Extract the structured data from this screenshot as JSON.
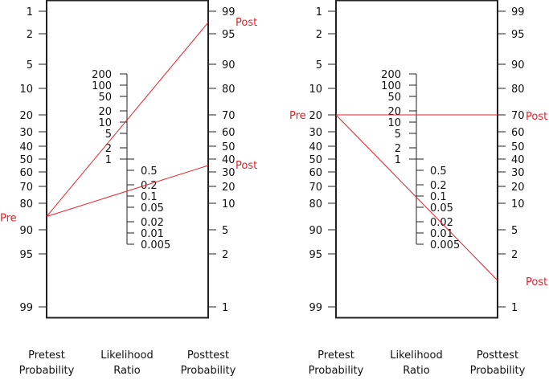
{
  "pretest_ticks": [
    "1",
    "2",
    "5",
    "10",
    "20",
    "30",
    "40",
    "50",
    "60",
    "70",
    "80",
    "90",
    "95",
    "99"
  ],
  "posttest_ticks": [
    "99",
    "95",
    "90",
    "80",
    "70",
    "60",
    "50",
    "40",
    "30",
    "20",
    "10",
    "5",
    "2",
    "1"
  ],
  "lr_ticks_upper": [
    "200",
    "100",
    "50",
    "20",
    "10",
    "5",
    "2",
    "1"
  ],
  "lr_ticks_lower": [
    "0.5",
    "0.2",
    "0.1",
    "0.05",
    "0.02",
    "0.01",
    "0.005"
  ],
  "line_color": "#e8202a",
  "panels": [
    {
      "pre_label": "Pre",
      "pretest_value": 85,
      "lines": [
        {
          "posttest_value": 98.5,
          "post_label": "Post"
        },
        {
          "posttest_value": 45,
          "post_label": "Post"
        }
      ],
      "captions": {
        "pretest": [
          "Pretest",
          "Probability"
        ],
        "lr": [
          "Likelihood",
          "Ratio"
        ],
        "posttest": [
          "Posttest",
          "Probability"
        ]
      }
    },
    {
      "pre_label": "Pre",
      "pretest_value": 20,
      "lines": [
        {
          "posttest_value": 80,
          "post_label": "Post"
        },
        {
          "posttest_value": 3,
          "post_label": "Post"
        }
      ],
      "captions": {
        "pretest": [
          "Pretest",
          "Probability"
        ],
        "lr": [
          "Likelihood",
          "Ratio"
        ],
        "posttest": [
          "Posttest",
          "Probability"
        ]
      }
    }
  ]
}
